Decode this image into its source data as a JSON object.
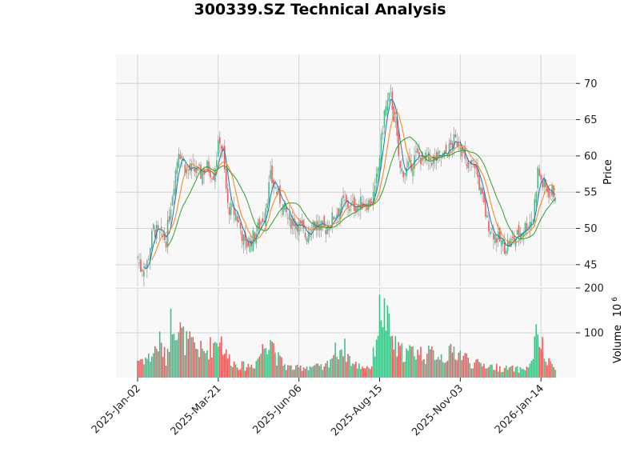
{
  "chart_data": {
    "type": "candlestick",
    "title": "300339.SZ Technical Analysis",
    "ylabel": "Price",
    "volume_label": "Volume",
    "volume_exponent_label": "10",
    "volume_exponent_power": "6",
    "x_tick_labels": [
      "2025-Jan-02",
      "2025-Mar-21",
      "2025-Jun-06",
      "2025-Aug-15",
      "2025-Nov-03",
      "2026-Jan-14"
    ],
    "x_tick_index": [
      0,
      51,
      102,
      153,
      204,
      255
    ],
    "price_ticks": [
      "45",
      "50",
      "55",
      "60",
      "65",
      "70"
    ],
    "price_ylim": [
      42,
      74
    ],
    "volume_ticks": [
      "100",
      "200"
    ],
    "volume_ylim": [
      0,
      200
    ],
    "up_color": "#3dbf86",
    "down_color": "#f05a5a",
    "ma_colors": [
      "#1f77b4",
      "#ff7f0e",
      "#2ca02c"
    ],
    "grid": true,
    "n_bars": 265,
    "close_anchors": [
      [
        0,
        46
      ],
      [
        2,
        44.5
      ],
      [
        6,
        45.2
      ],
      [
        10,
        50
      ],
      [
        14,
        49
      ],
      [
        18,
        48.5
      ],
      [
        22,
        55
      ],
      [
        26,
        61
      ],
      [
        31,
        58
      ],
      [
        36,
        58
      ],
      [
        40,
        57.5
      ],
      [
        44,
        58.5
      ],
      [
        48,
        57.5
      ],
      [
        52,
        62.5
      ],
      [
        54,
        60
      ],
      [
        57,
        53
      ],
      [
        62,
        52
      ],
      [
        65,
        50
      ],
      [
        68,
        47.5
      ],
      [
        74,
        49
      ],
      [
        80,
        52
      ],
      [
        84,
        57
      ],
      [
        88,
        55
      ],
      [
        92,
        53
      ],
      [
        96,
        51
      ],
      [
        100,
        51
      ],
      [
        103,
        50
      ],
      [
        106,
        49
      ],
      [
        111,
        51
      ],
      [
        115,
        50
      ],
      [
        119,
        50
      ],
      [
        125,
        52
      ],
      [
        130,
        53.5
      ],
      [
        136,
        53
      ],
      [
        142,
        53.5
      ],
      [
        147,
        53.5
      ],
      [
        150,
        55
      ],
      [
        153,
        60
      ],
      [
        156,
        66
      ],
      [
        160,
        68.5
      ],
      [
        163,
        64
      ],
      [
        166,
        58
      ],
      [
        170,
        58
      ],
      [
        176,
        60
      ],
      [
        182,
        59.5
      ],
      [
        188,
        59.5
      ],
      [
        194,
        60
      ],
      [
        200,
        62
      ],
      [
        204,
        62
      ],
      [
        208,
        58
      ],
      [
        213,
        59
      ],
      [
        217,
        55
      ],
      [
        221,
        51
      ],
      [
        226,
        49
      ],
      [
        232,
        47.5
      ],
      [
        238,
        48.5
      ],
      [
        244,
        50
      ],
      [
        250,
        51.5
      ],
      [
        253,
        58
      ],
      [
        256,
        56
      ],
      [
        260,
        55
      ],
      [
        264,
        55
      ]
    ],
    "volume_anchors": [
      [
        0,
        40
      ],
      [
        8,
        45
      ],
      [
        14,
        80
      ],
      [
        18,
        40
      ],
      [
        22,
        145
      ],
      [
        26,
        110
      ],
      [
        30,
        80
      ],
      [
        36,
        70
      ],
      [
        42,
        55
      ],
      [
        48,
        75
      ],
      [
        52,
        95
      ],
      [
        56,
        50
      ],
      [
        62,
        30
      ],
      [
        68,
        25
      ],
      [
        74,
        30
      ],
      [
        80,
        70
      ],
      [
        84,
        100
      ],
      [
        88,
        45
      ],
      [
        94,
        25
      ],
      [
        100,
        20
      ],
      [
        106,
        25
      ],
      [
        112,
        25
      ],
      [
        118,
        20
      ],
      [
        124,
        55
      ],
      [
        130,
        70
      ],
      [
        136,
        30
      ],
      [
        142,
        25
      ],
      [
        148,
        25
      ],
      [
        152,
        120
      ],
      [
        154,
        160
      ],
      [
        157,
        130
      ],
      [
        160,
        95
      ],
      [
        164,
        60
      ],
      [
        170,
        55
      ],
      [
        176,
        60
      ],
      [
        182,
        50
      ],
      [
        188,
        55
      ],
      [
        194,
        45
      ],
      [
        200,
        60
      ],
      [
        206,
        50
      ],
      [
        212,
        30
      ],
      [
        218,
        30
      ],
      [
        224,
        25
      ],
      [
        230,
        20
      ],
      [
        236,
        20
      ],
      [
        242,
        18
      ],
      [
        248,
        25
      ],
      [
        252,
        90
      ],
      [
        255,
        80
      ],
      [
        258,
        35
      ],
      [
        264,
        25
      ]
    ]
  }
}
